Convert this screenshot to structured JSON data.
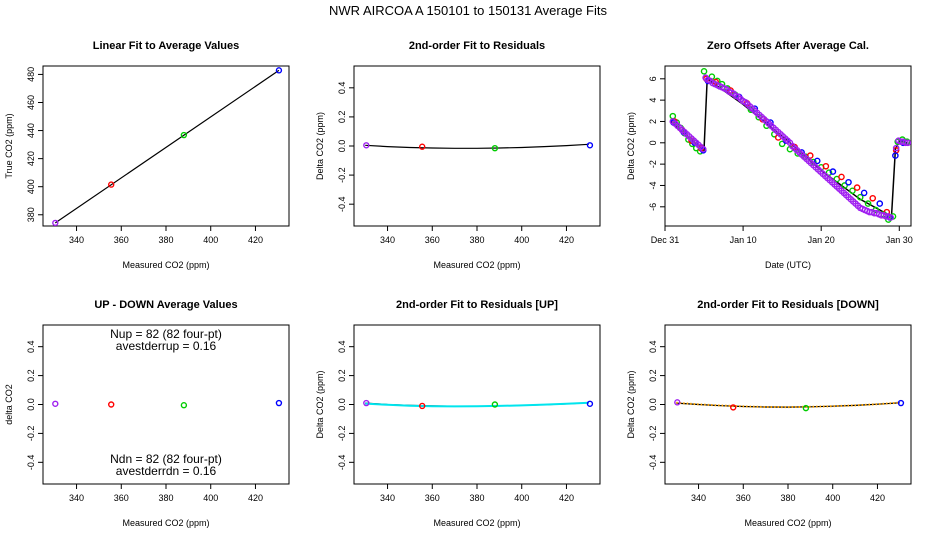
{
  "page_title": "NWR   AIRCOA A   150101 to 150131   Average Fits",
  "colors": {
    "purple": "#a020f0",
    "red": "#ff0000",
    "green": "#00cc00",
    "blue": "#0000ff",
    "cyan": "#00e5ee",
    "orange": "#ffa500",
    "black": "#000000"
  },
  "chart_data": [
    {
      "id": "linear",
      "type": "scatter",
      "title": "Linear Fit to Average Values",
      "xlabel": "Measured CO2 (ppm)",
      "ylabel": "True CO2 (ppm)",
      "xlim": [
        325,
        435
      ],
      "ylim": [
        372,
        486
      ],
      "xticks": [
        340,
        360,
        380,
        400,
        420
      ],
      "yticks": [
        380,
        400,
        420,
        440,
        460,
        480
      ],
      "series": [
        {
          "name": "fit",
          "style": "line",
          "color": "#000000",
          "x": [
            330.5,
            430.5
          ],
          "y": [
            374.2,
            482.9
          ]
        },
        {
          "name": "standards",
          "style": "points",
          "x": [
            330.5,
            355.5,
            388,
            430.5
          ],
          "y": [
            374.2,
            401.5,
            436.8,
            482.9
          ],
          "colors": [
            "#a020f0",
            "#ff0000",
            "#00cc00",
            "#0000ff"
          ]
        }
      ]
    },
    {
      "id": "residuals",
      "type": "scatter",
      "title": "2nd-order Fit to Residuals",
      "xlabel": "Measured CO2 (ppm)",
      "ylabel": "Delta CO2 (ppm)",
      "xlim": [
        325,
        435
      ],
      "ylim": [
        -0.55,
        0.55
      ],
      "xticks": [
        340,
        360,
        380,
        400,
        420
      ],
      "yticks": [
        -0.4,
        -0.2,
        0.0,
        0.2,
        0.4
      ],
      "ytick_labels": [
        "-0.4",
        "-0.2",
        "0.0",
        "0.2",
        "0.4"
      ],
      "series": [
        {
          "name": "fit",
          "style": "line",
          "color": "#000000",
          "x": [
            330,
            340,
            350,
            360,
            370,
            380,
            390,
            400,
            410,
            420,
            430
          ],
          "y": [
            0.005,
            -0.004,
            -0.01,
            -0.014,
            -0.016,
            -0.016,
            -0.014,
            -0.01,
            -0.004,
            0.003,
            0.012
          ]
        },
        {
          "name": "standards",
          "style": "points",
          "x": [
            330.5,
            355.5,
            388,
            430.5
          ],
          "y": [
            0.005,
            -0.005,
            -0.015,
            0.005
          ],
          "colors": [
            "#a020f0",
            "#ff0000",
            "#00cc00",
            "#0000ff"
          ]
        }
      ]
    },
    {
      "id": "zero-offsets",
      "type": "scatter",
      "title": "Zero Offsets After Average Cal.",
      "xlabel": "Date (UTC)",
      "ylabel": "Delta CO2 (ppm)",
      "xlim": [
        0,
        31.5
      ],
      "ylim": [
        -7.8,
        7.2
      ],
      "xticks": [
        0,
        10,
        20,
        30
      ],
      "xtick_labels": [
        "Dec 31",
        "Jan 10",
        "Jan 20",
        "Jan 30"
      ],
      "yticks": [
        -6,
        -4,
        -2,
        0,
        2,
        4,
        6
      ],
      "series": [
        {
          "name": "green",
          "style": "points",
          "color": "#00cc00",
          "x": [
            1,
            1.5,
            2,
            2.5,
            3,
            3.5,
            4,
            4.5,
            5,
            6,
            6.7,
            7.3,
            8,
            9,
            10,
            11,
            12,
            13,
            14,
            15,
            16,
            17,
            18,
            19,
            20,
            21,
            22,
            23,
            24,
            25,
            26,
            27,
            28,
            28.6,
            29.2,
            29.8,
            30.4,
            31
          ],
          "y": [
            2.5,
            1.9,
            1.4,
            0.9,
            0.3,
            -0.1,
            -0.5,
            -0.8,
            6.7,
            6.2,
            5.8,
            5.5,
            5.1,
            4.5,
            3.9,
            3.1,
            2.4,
            1.6,
            0.8,
            -0.1,
            -0.6,
            -1.0,
            -1.3,
            -1.8,
            -2.3,
            -2.8,
            -3.4,
            -4.0,
            -4.5,
            -5.1,
            -5.7,
            -6.3,
            -6.7,
            -7.2,
            -6.9,
            0.1,
            0.3,
            0.1
          ]
        },
        {
          "name": "red",
          "style": "points",
          "color": "#ff0000",
          "x": [
            1.2,
            2.2,
            3.4,
            4.6,
            5.3,
            6.5,
            8.4,
            10.5,
            12.5,
            14.5,
            16.6,
            18.6,
            20.6,
            22.6,
            24.6,
            26.6,
            28.4,
            29.6
          ],
          "y": [
            2.0,
            1.2,
            0.2,
            -0.5,
            6.0,
            5.7,
            4.9,
            3.7,
            2.2,
            0.5,
            -0.4,
            -1.2,
            -2.2,
            -3.2,
            -4.2,
            -5.2,
            -6.5,
            -0.7
          ]
        },
        {
          "name": "blue",
          "style": "points",
          "color": "#0000ff",
          "x": [
            1.1,
            2.4,
            3.8,
            4.9,
            5.5,
            7.0,
            9.5,
            11.5,
            13.5,
            15.5,
            17.5,
            19.5,
            21.5,
            23.5,
            25.5,
            27.5,
            28.8,
            29.5,
            30.5
          ],
          "y": [
            1.9,
            1.0,
            0.0,
            -0.7,
            5.8,
            5.3,
            4.3,
            3.2,
            1.9,
            0.2,
            -0.9,
            -1.7,
            -2.7,
            -3.7,
            -4.7,
            -5.7,
            -7.0,
            -1.2,
            0.0
          ]
        },
        {
          "name": "purple",
          "style": "points",
          "color": "#a020f0",
          "x": [
            1,
            1.3,
            1.6,
            1.9,
            2.2,
            2.5,
            2.8,
            3.1,
            3.4,
            3.7,
            4,
            4.3,
            4.6,
            4.9,
            5.2,
            5.5,
            5.8,
            6.1,
            6.4,
            6.7,
            7,
            7.3,
            7.6,
            7.9,
            8.2,
            8.5,
            8.8,
            9.1,
            9.4,
            9.7,
            10,
            10.3,
            10.6,
            10.9,
            11.2,
            11.5,
            11.8,
            12.1,
            12.4,
            12.7,
            13,
            13.3,
            13.6,
            13.9,
            14.2,
            14.5,
            14.8,
            15.1,
            15.4,
            15.7,
            16,
            16.3,
            16.6,
            16.9,
            17.2,
            17.5,
            17.8,
            18.1,
            18.4,
            18.7,
            19,
            19.3,
            19.6,
            19.9,
            20.2,
            20.5,
            20.8,
            21.1,
            21.4,
            21.7,
            22,
            22.3,
            22.6,
            22.9,
            23.2,
            23.5,
            23.8,
            24.1,
            24.4,
            24.7,
            25,
            25.3,
            25.6,
            25.9,
            26.2,
            26.5,
            26.8,
            27.1,
            27.4,
            27.7,
            28,
            28.3,
            28.6,
            28.9,
            29.6,
            29.9,
            30.2,
            30.5,
            30.8,
            31.1
          ],
          "y": [
            2.0,
            1.8,
            1.6,
            1.4,
            1.2,
            1.0,
            0.8,
            0.6,
            0.4,
            0.2,
            0.0,
            -0.2,
            -0.4,
            -0.6,
            6.1,
            5.9,
            5.8,
            5.6,
            5.5,
            5.4,
            5.3,
            5.2,
            5.1,
            5.0,
            4.8,
            4.7,
            4.6,
            4.4,
            4.3,
            4.1,
            3.9,
            3.8,
            3.6,
            3.4,
            3.2,
            3.0,
            2.8,
            2.6,
            2.4,
            2.2,
            2.0,
            1.8,
            1.6,
            1.4,
            1.2,
            1.0,
            0.8,
            0.6,
            0.4,
            0.2,
            0.0,
            -0.3,
            -0.5,
            -0.7,
            -0.9,
            -1.1,
            -1.3,
            -1.5,
            -1.7,
            -1.9,
            -2.1,
            -2.3,
            -2.5,
            -2.7,
            -2.9,
            -3.1,
            -3.3,
            -3.5,
            -3.7,
            -3.9,
            -4.1,
            -4.3,
            -4.5,
            -4.7,
            -4.9,
            -5.1,
            -5.3,
            -5.5,
            -5.7,
            -5.9,
            -6.1,
            -6.2,
            -6.3,
            -6.4,
            -6.5,
            -6.5,
            -6.6,
            -6.6,
            -6.7,
            -6.8,
            -6.8,
            -6.9,
            -6.9,
            -7.0,
            -0.5,
            0.2,
            0.1,
            0.1,
            0.0,
            0.0
          ]
        },
        {
          "name": "trend",
          "style": "line",
          "color": "#000000",
          "x": [
            1,
            5,
            5.4,
            10,
            16,
            20,
            25,
            29,
            29.5,
            30,
            31
          ],
          "y": [
            1.8,
            -0.7,
            6.0,
            3.6,
            0.0,
            -2.6,
            -5.3,
            -6.9,
            -0.6,
            0.2,
            0.0
          ]
        }
      ]
    },
    {
      "id": "updown",
      "type": "scatter",
      "title": "UP - DOWN Average Values",
      "xlabel": "Measured CO2 (ppm)",
      "ylabel": "delta CO2",
      "xlim": [
        325,
        435
      ],
      "ylim": [
        -0.55,
        0.55
      ],
      "xticks": [
        340,
        360,
        380,
        400,
        420
      ],
      "yticks": [
        -0.4,
        -0.2,
        0.0,
        0.2,
        0.4
      ],
      "ytick_labels": [
        "-0.4",
        "-0.2",
        "0.0",
        "0.2",
        "0.4"
      ],
      "annotations": [
        "Nup = 82 (82 four-pt)",
        "avestderrup =  0.16",
        "Ndn = 82 (82 four-pt)",
        "avestderrdn =  0.16"
      ],
      "series": [
        {
          "name": "standards",
          "style": "points",
          "x": [
            330.5,
            355.5,
            388,
            430.5
          ],
          "y": [
            0.005,
            0.0,
            -0.005,
            0.01
          ],
          "colors": [
            "#a020f0",
            "#ff0000",
            "#00cc00",
            "#0000ff"
          ]
        }
      ]
    },
    {
      "id": "residuals-up",
      "type": "scatter",
      "title": "2nd-order Fit to Residuals [UP]",
      "xlabel": "Measured CO2 (ppm)",
      "ylabel": "Delta CO2 (ppm)",
      "xlim": [
        325,
        435
      ],
      "ylim": [
        -0.55,
        0.55
      ],
      "xticks": [
        340,
        360,
        380,
        400,
        420
      ],
      "yticks": [
        -0.4,
        -0.2,
        0.0,
        0.2,
        0.4
      ],
      "ytick_labels": [
        "-0.4",
        "-0.2",
        "0.0",
        "0.2",
        "0.4"
      ],
      "series": [
        {
          "name": "fit-black",
          "style": "line",
          "color": "#000000",
          "x": [
            330,
            340,
            350,
            360,
            370,
            380,
            390,
            400,
            410,
            420,
            430
          ],
          "y": [
            0.01,
            0.0,
            -0.006,
            -0.01,
            -0.012,
            -0.012,
            -0.01,
            -0.006,
            -0.002,
            0.004,
            0.012
          ]
        },
        {
          "name": "fit-cyan",
          "style": "line",
          "color": "#00e5ee",
          "x": [
            330,
            340,
            350,
            360,
            370,
            380,
            390,
            400,
            410,
            420,
            430
          ],
          "y": [
            0.006,
            -0.002,
            -0.008,
            -0.012,
            -0.013,
            -0.012,
            -0.01,
            -0.006,
            -0.001,
            0.005,
            0.012
          ]
        },
        {
          "name": "standards",
          "style": "points",
          "x": [
            330.5,
            355.5,
            388,
            430.5
          ],
          "y": [
            0.01,
            -0.01,
            0.0,
            0.005
          ],
          "colors": [
            "#a020f0",
            "#ff0000",
            "#00cc00",
            "#0000ff"
          ]
        }
      ]
    },
    {
      "id": "residuals-down",
      "type": "scatter",
      "title": "2nd-order Fit to Residuals [DOWN]",
      "xlabel": "Measured CO2 (ppm)",
      "ylabel": "Delta CO2 (ppm)",
      "xlim": [
        325,
        435
      ],
      "ylim": [
        -0.55,
        0.55
      ],
      "xticks": [
        340,
        360,
        380,
        400,
        420
      ],
      "yticks": [
        -0.4,
        -0.2,
        0.0,
        0.2,
        0.4
      ],
      "ytick_labels": [
        "-0.4",
        "-0.2",
        "0.0",
        "0.2",
        "0.4"
      ],
      "series": [
        {
          "name": "fit-black",
          "style": "line",
          "color": "#000000",
          "x": [
            330,
            340,
            350,
            360,
            370,
            380,
            390,
            400,
            410,
            420,
            430
          ],
          "y": [
            0.01,
            0.0,
            -0.008,
            -0.014,
            -0.017,
            -0.018,
            -0.016,
            -0.012,
            -0.006,
            0.002,
            0.012
          ]
        },
        {
          "name": "fit-orange",
          "style": "dotted-line",
          "color": "#ffa500",
          "x": [
            330,
            340,
            350,
            360,
            370,
            380,
            390,
            400,
            410,
            420,
            430
          ],
          "y": [
            0.012,
            0.001,
            -0.007,
            -0.013,
            -0.017,
            -0.018,
            -0.016,
            -0.012,
            -0.006,
            0.002,
            0.013
          ]
        },
        {
          "name": "standards",
          "style": "points",
          "x": [
            330.5,
            355.5,
            388,
            430.5
          ],
          "y": [
            0.015,
            -0.02,
            -0.025,
            0.01
          ],
          "colors": [
            "#a020f0",
            "#ff0000",
            "#00cc00",
            "#0000ff"
          ]
        }
      ]
    }
  ]
}
